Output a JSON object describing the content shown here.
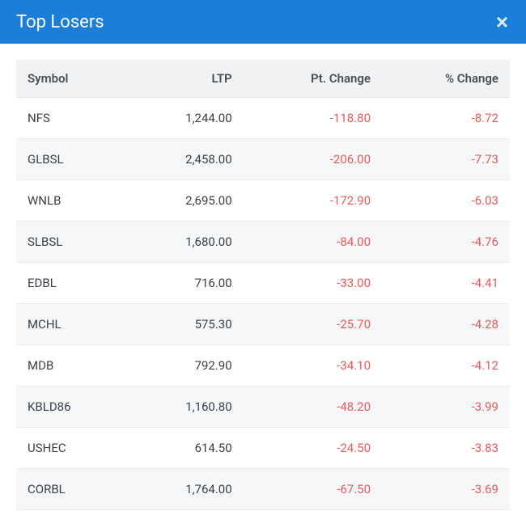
{
  "header": {
    "title": "Top Losers",
    "close_glyph": "×"
  },
  "colors": {
    "header_bg": "#1b7ed8",
    "header_text": "#ffffff",
    "thead_bg": "#f1f2f3",
    "thead_text": "#4a4f57",
    "row_odd_bg": "#ffffff",
    "row_even_bg": "#f6f7f8",
    "border": "#eceeef",
    "body_text": "#3a3f46",
    "negative": "#e85a5a"
  },
  "table": {
    "type": "table",
    "columns": [
      {
        "key": "symbol",
        "label": "Symbol",
        "align": "left"
      },
      {
        "key": "ltp",
        "label": "LTP",
        "align": "right"
      },
      {
        "key": "pt_change",
        "label": "Pt. Change",
        "align": "right"
      },
      {
        "key": "pct_change",
        "label": "% Change",
        "align": "right"
      }
    ],
    "rows": [
      {
        "symbol": "NFS",
        "ltp": "1,244.00",
        "pt_change": "-118.80",
        "pct_change": "-8.72"
      },
      {
        "symbol": "GLBSL",
        "ltp": "2,458.00",
        "pt_change": "-206.00",
        "pct_change": "-7.73"
      },
      {
        "symbol": "WNLB",
        "ltp": "2,695.00",
        "pt_change": "-172.90",
        "pct_change": "-6.03"
      },
      {
        "symbol": "SLBSL",
        "ltp": "1,680.00",
        "pt_change": "-84.00",
        "pct_change": "-4.76"
      },
      {
        "symbol": "EDBL",
        "ltp": "716.00",
        "pt_change": "-33.00",
        "pct_change": "-4.41"
      },
      {
        "symbol": "MCHL",
        "ltp": "575.30",
        "pt_change": "-25.70",
        "pct_change": "-4.28"
      },
      {
        "symbol": "MDB",
        "ltp": "792.90",
        "pt_change": "-34.10",
        "pct_change": "-4.12"
      },
      {
        "symbol": "KBLD86",
        "ltp": "1,160.80",
        "pt_change": "-48.20",
        "pct_change": "-3.99"
      },
      {
        "symbol": "USHEC",
        "ltp": "614.50",
        "pt_change": "-24.50",
        "pct_change": "-3.83"
      },
      {
        "symbol": "CORBL",
        "ltp": "1,764.00",
        "pt_change": "-67.50",
        "pct_change": "-3.69"
      }
    ]
  }
}
